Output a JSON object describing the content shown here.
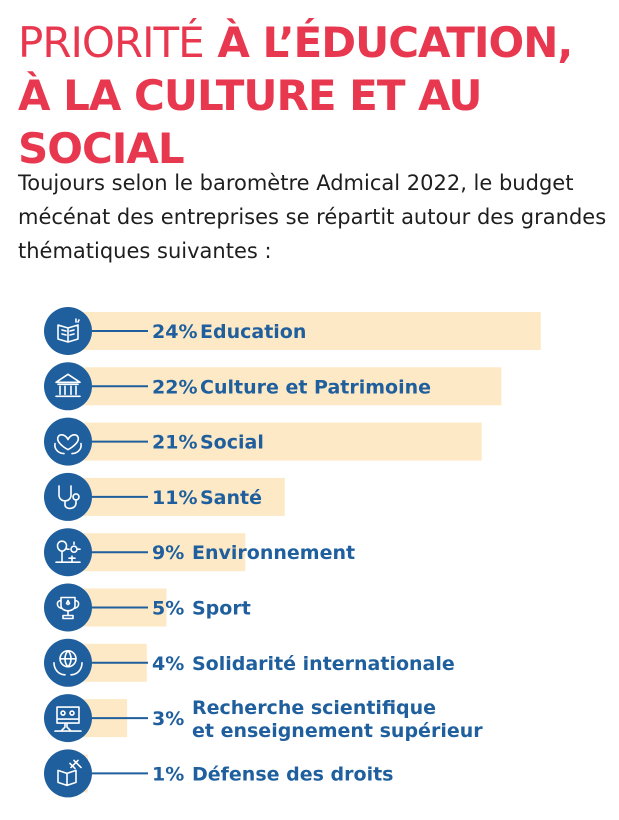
{
  "title": {
    "part1": "PRIORITÉ",
    "part2": "À L’ÉDUCATION, À LA CULTURE ET AU SOCIAL"
  },
  "intro": "Toujours selon le baromètre Admical 2022, le budget mécénat des entreprises se répartit autour des grandes thématiques suivantes :",
  "colors": {
    "title": "#e8384f",
    "bar": "#fde9c5",
    "icon": "#1f5f9d",
    "label": "#1f5f9d"
  },
  "chart_data": {
    "type": "bar",
    "orientation": "horizontal",
    "unit": "%",
    "categories": [
      "Education",
      "Culture et Patrimoine",
      "Social",
      "Santé",
      "Environnement",
      "Sport",
      "Solidarité internationale",
      "Recherche scientifique et enseignement supérieur",
      "Défense des droits"
    ],
    "category_lines": [
      [
        "Education"
      ],
      [
        "Culture et Patrimoine"
      ],
      [
        "Social"
      ],
      [
        "Santé"
      ],
      [
        "Environnement"
      ],
      [
        "Sport"
      ],
      [
        "Solidarité internationale"
      ],
      [
        "Recherche scientifique",
        "et enseignement supérieur"
      ],
      [
        "Défense des droits"
      ]
    ],
    "values": [
      24,
      22,
      21,
      11,
      9,
      5,
      4,
      3,
      1
    ],
    "value_labels": [
      "24%",
      "22%",
      "21%",
      "11%",
      "9%",
      "5%",
      "4%",
      "3%",
      "1%"
    ],
    "icons": [
      "book-icon",
      "museum-icon",
      "heart-hands-icon",
      "stethoscope-icon",
      "tree-sun-icon",
      "trophy-icon",
      "globe-hands-icon",
      "lab-flask-icon",
      "justice-book-icon"
    ]
  }
}
